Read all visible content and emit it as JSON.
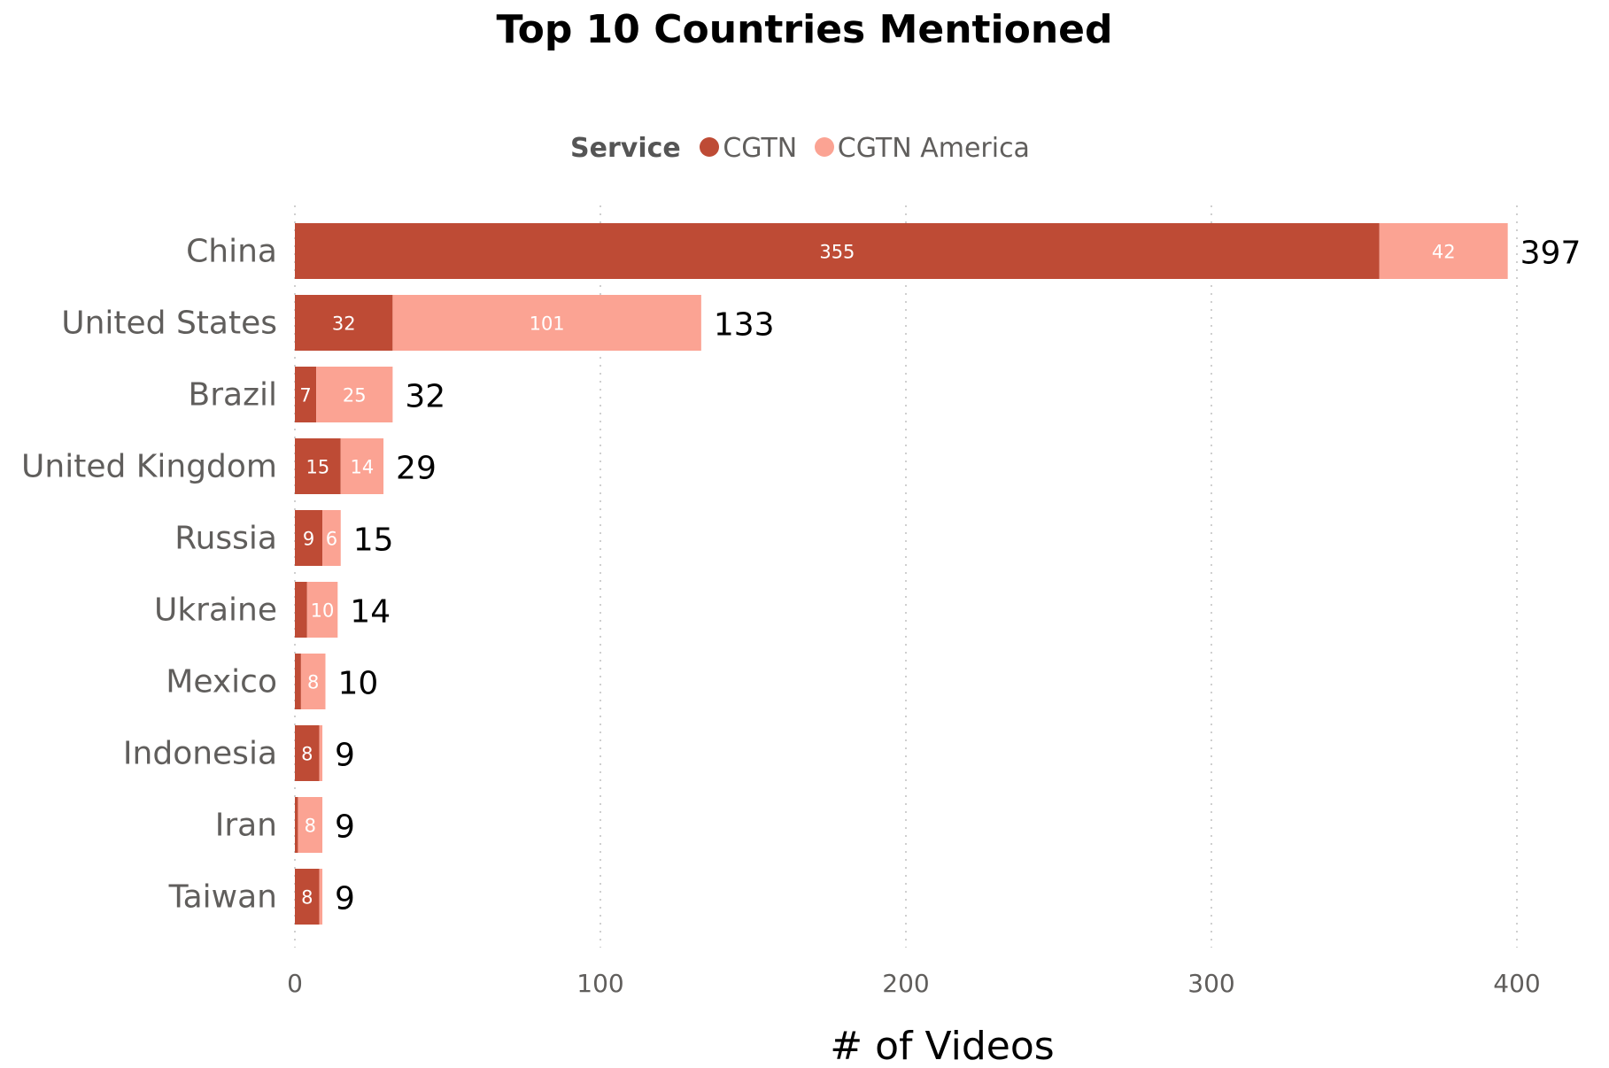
{
  "chart_data": {
    "type": "bar",
    "orientation": "horizontal",
    "stacked": true,
    "title": "Top 10 Countries Mentioned",
    "xlabel": "# of Videos",
    "ylabel": "",
    "legend_title": "Service",
    "legend_position": "top",
    "grid": true,
    "xlim": [
      0,
      400
    ],
    "xticks": [
      0,
      100,
      200,
      300,
      400
    ],
    "categories": [
      "China",
      "United States",
      "Brazil",
      "United Kingdom",
      "Russia",
      "Ukraine",
      "Mexico",
      "Indonesia",
      "Iran",
      "Taiwan"
    ],
    "series": [
      {
        "name": "CGTN",
        "color": "#be4b35",
        "values": [
          355,
          32,
          7,
          15,
          9,
          4,
          2,
          8,
          1,
          8
        ],
        "labels": [
          "355",
          "32",
          "7",
          "15",
          "9",
          "",
          "",
          "8",
          "",
          "8"
        ]
      },
      {
        "name": "CGTN America",
        "color": "#fba393",
        "values": [
          42,
          101,
          25,
          14,
          6,
          10,
          8,
          1,
          8,
          1
        ],
        "labels": [
          "42",
          "101",
          "25",
          "14",
          "6",
          "10",
          "8",
          "",
          "8",
          ""
        ]
      }
    ],
    "totals": [
      397,
      133,
      32,
      29,
      15,
      14,
      10,
      9,
      9,
      9
    ]
  }
}
